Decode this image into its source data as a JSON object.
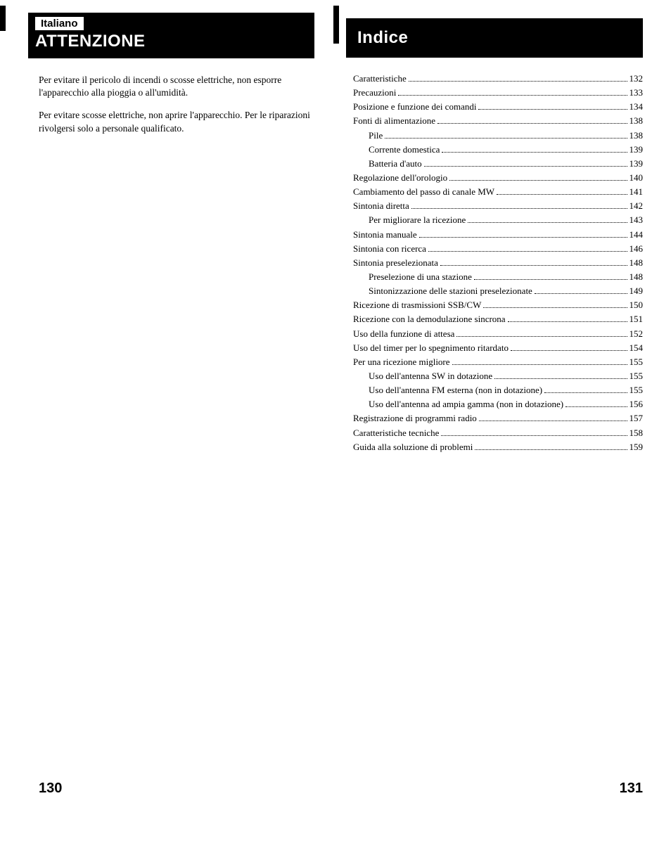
{
  "left": {
    "langLabel": "Italiano",
    "headerTitle": "ATTENZIONE",
    "para1": "Per evitare il pericolo di incendi o scosse elettriche, non esporre l'apparecchio alla pioggia o all'umidità.",
    "para2": "Per evitare scosse elettriche, non aprire l'apparecchio. Per le riparazioni rivolgersi solo a personale qualificato.",
    "pageNumber": "130"
  },
  "right": {
    "headerTitle": "Indice",
    "toc": [
      {
        "label": "Caratteristiche",
        "page": "132",
        "indent": 0
      },
      {
        "label": "Precauzioni",
        "page": "133",
        "indent": 0
      },
      {
        "label": "Posizione e funzione dei comandi",
        "page": "134",
        "indent": 0
      },
      {
        "label": "Fonti di alimentazione",
        "page": "138",
        "indent": 0
      },
      {
        "label": "Pile",
        "page": "138",
        "indent": 1
      },
      {
        "label": "Corrente domestica",
        "page": "139",
        "indent": 1
      },
      {
        "label": "Batteria d'auto",
        "page": "139",
        "indent": 1
      },
      {
        "label": "Regolazione dell'orologio",
        "page": "140",
        "indent": 0
      },
      {
        "label": "Cambiamento del passo di canale MW",
        "page": "141",
        "indent": 0
      },
      {
        "label": "Sintonia diretta",
        "page": "142",
        "indent": 0
      },
      {
        "label": "Per migliorare la ricezione",
        "page": "143",
        "indent": 1
      },
      {
        "label": "Sintonia manuale",
        "page": "144",
        "indent": 0
      },
      {
        "label": "Sintonia con ricerca",
        "page": "146",
        "indent": 0
      },
      {
        "label": "Sintonia preselezionata",
        "page": "148",
        "indent": 0
      },
      {
        "label": "Preselezione di una stazione",
        "page": "148",
        "indent": 1
      },
      {
        "label": "Sintonizzazione delle stazioni preselezionate",
        "page": "149",
        "indent": 1
      },
      {
        "label": "Ricezione di trasmissioni SSB/CW",
        "page": "150",
        "indent": 0
      },
      {
        "label": "Ricezione con la demodulazione sincrona",
        "page": "151",
        "indent": 0
      },
      {
        "label": "Uso della funzione di attesa",
        "page": "152",
        "indent": 0
      },
      {
        "label": "Uso del timer per lo spegnimento ritardato",
        "page": "154",
        "indent": 0
      },
      {
        "label": "Per una ricezione migliore",
        "page": "155",
        "indent": 0
      },
      {
        "label": "Uso dell'antenna SW in dotazione",
        "page": "155",
        "indent": 1
      },
      {
        "label": "Uso dell'antenna FM esterna (non in dotazione)",
        "page": "155",
        "indent": 1
      },
      {
        "label": "Uso dell'antenna ad ampia gamma (non in dotazione)",
        "page": "156",
        "indent": 1
      },
      {
        "label": "Registrazione di programmi radio",
        "page": "157",
        "indent": 0
      },
      {
        "label": "Caratteristiche tecniche",
        "page": "158",
        "indent": 0
      },
      {
        "label": "Guida alla soluzione di problemi",
        "page": "159",
        "indent": 0
      }
    ],
    "pageNumber": "131"
  }
}
